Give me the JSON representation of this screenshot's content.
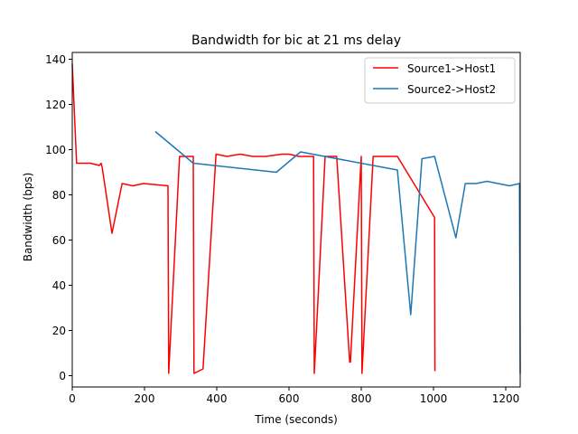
{
  "chart_data": {
    "type": "line",
    "title": "Bandwidth for bic at 21 ms delay",
    "xlabel": "Time (seconds)",
    "ylabel": "Bandwidth (bps)",
    "xlim": [
      0,
      1240
    ],
    "ylim": [
      -5,
      143
    ],
    "xticks": [
      0,
      200,
      400,
      600,
      800,
      1000,
      1200
    ],
    "yticks": [
      0,
      20,
      40,
      60,
      80,
      100,
      120,
      140
    ],
    "grid": false,
    "legend_position": "upper right",
    "series": [
      {
        "name": "Source1->Host1",
        "color": "#ff0000",
        "x": [
          0,
          12,
          50,
          75,
          80,
          83,
          110,
          138,
          168,
          197,
          265,
          267,
          297,
          335,
          337,
          362,
          398,
          428,
          465,
          500,
          535,
          580,
          600,
          627,
          668,
          670,
          700,
          732,
          768,
          770,
          800,
          802,
          833,
          900,
          1003,
          1004
        ],
        "y": [
          138,
          94,
          94,
          93,
          94,
          92,
          63,
          85,
          84,
          85,
          84,
          1,
          97,
          97,
          1,
          3,
          98,
          97,
          98,
          97,
          97,
          98,
          98,
          97,
          97,
          1,
          97,
          97,
          6,
          6,
          97,
          1,
          97,
          97,
          70,
          2
        ]
      },
      {
        "name": "Source2->Host2",
        "color": "#1f77b4",
        "x": [
          230,
          335,
          565,
          632,
          900,
          937,
          968,
          1003,
          1062,
          1088,
          1118,
          1148,
          1210,
          1238,
          1240
        ],
        "y": [
          108,
          94,
          90,
          99,
          91,
          27,
          96,
          97,
          61,
          85,
          85,
          86,
          84,
          85,
          1
        ]
      }
    ]
  }
}
